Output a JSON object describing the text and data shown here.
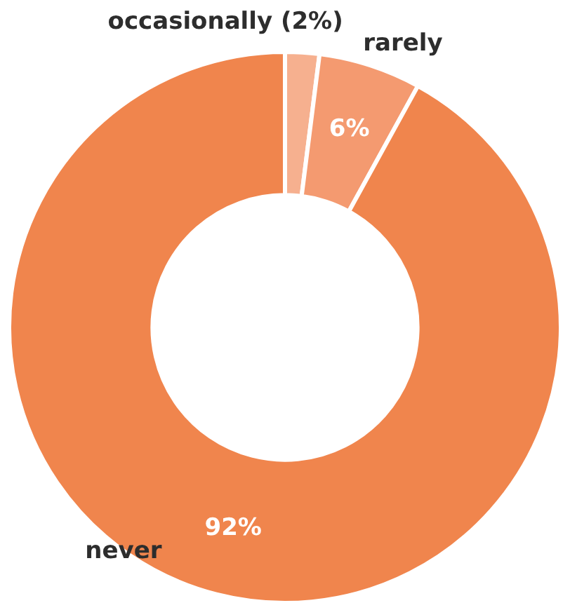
{
  "chart_data": {
    "type": "donut",
    "categories": [
      "occasionally (2%)",
      "rarely",
      "never"
    ],
    "values": [
      2,
      6,
      92
    ],
    "colors": [
      "#f6b08f",
      "#f49a70",
      "#f0854d"
    ],
    "value_labels": [
      null,
      "6%",
      "92%"
    ],
    "legend": false
  }
}
